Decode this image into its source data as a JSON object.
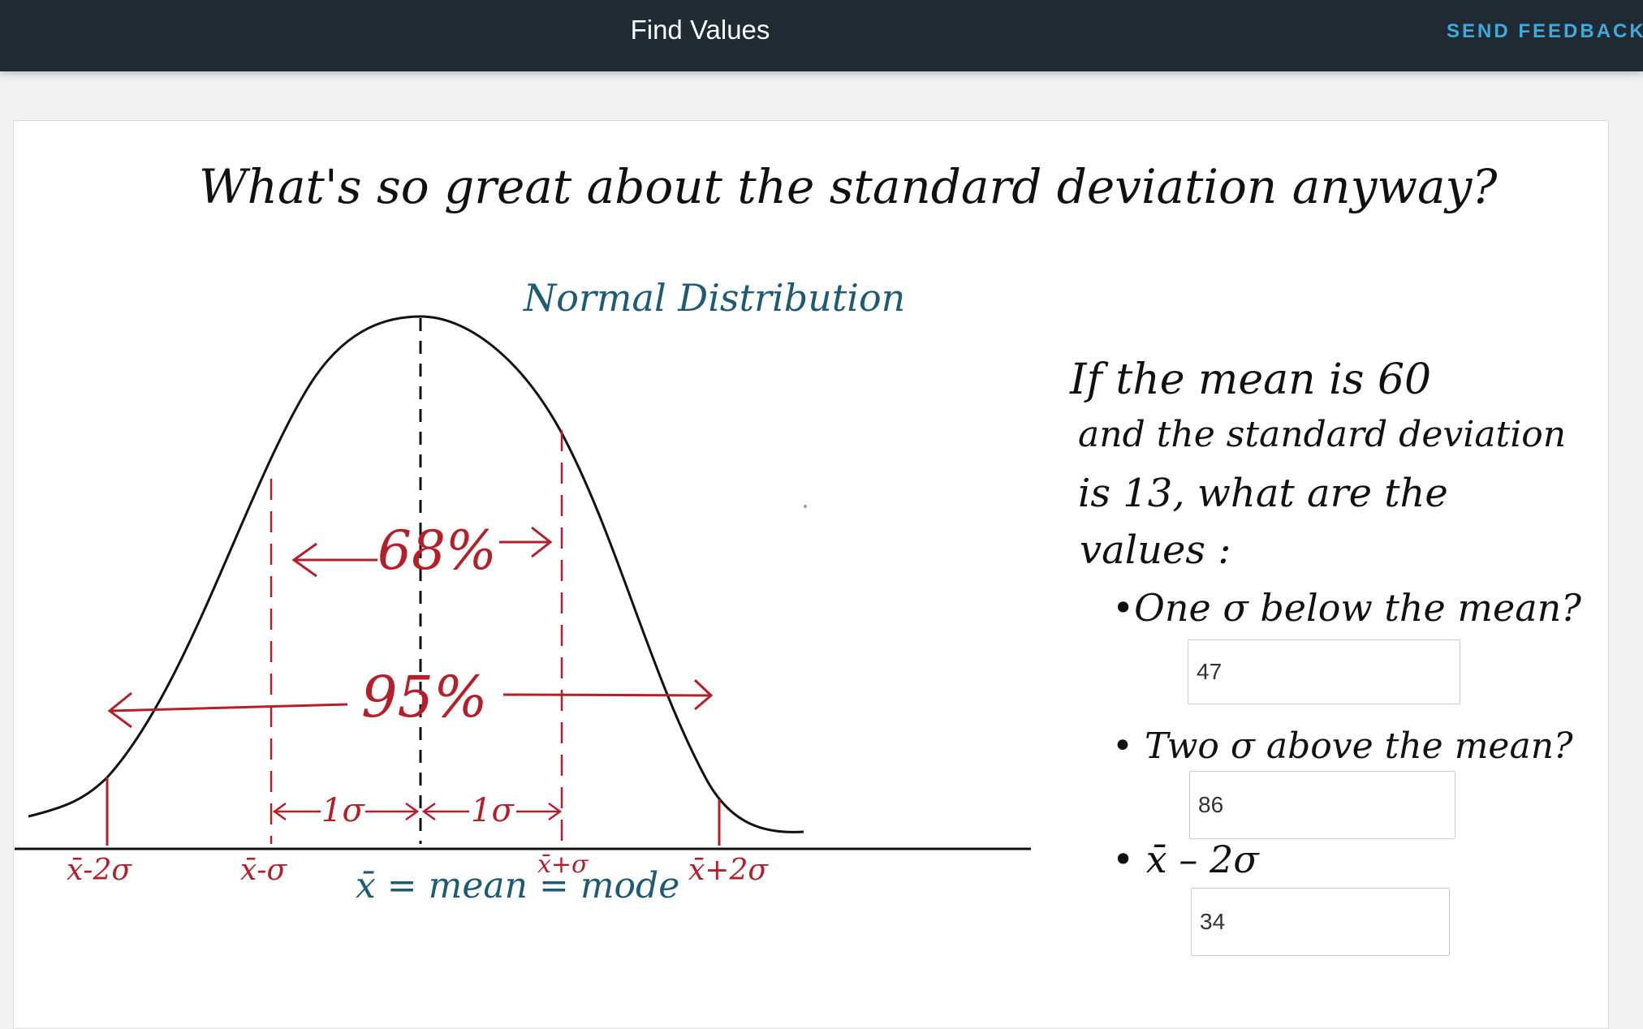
{
  "header": {
    "title": "Find Values",
    "feedback_label": "SEND FEEDBACK"
  },
  "lecture": {
    "heading": "What's so great about the standard deviation anyway?",
    "diagram_title": "Normal Distribution",
    "label_68": "68%",
    "label_95": "95%",
    "label_1sigma": "1σ",
    "axis_labels": [
      "x̄-2σ",
      "x̄-σ",
      "x̄+σ",
      "x̄+2σ"
    ],
    "mean_label": "x̄ = mean = mode",
    "problem": [
      "If the mean is 60",
      "and the standard deviation",
      "is 13, what are the",
      "values :"
    ],
    "questions": [
      "•One σ below the mean?",
      "• Two σ above the mean?",
      "• x̄ – 2σ"
    ]
  },
  "answers": [
    {
      "value": "47"
    },
    {
      "value": "86"
    },
    {
      "value": "34"
    }
  ],
  "colors": {
    "header_bg": "#1f2a33",
    "feedback": "#3fa9dc",
    "red_ink": "#b51f2a",
    "teal_ink": "#1d5a74"
  }
}
